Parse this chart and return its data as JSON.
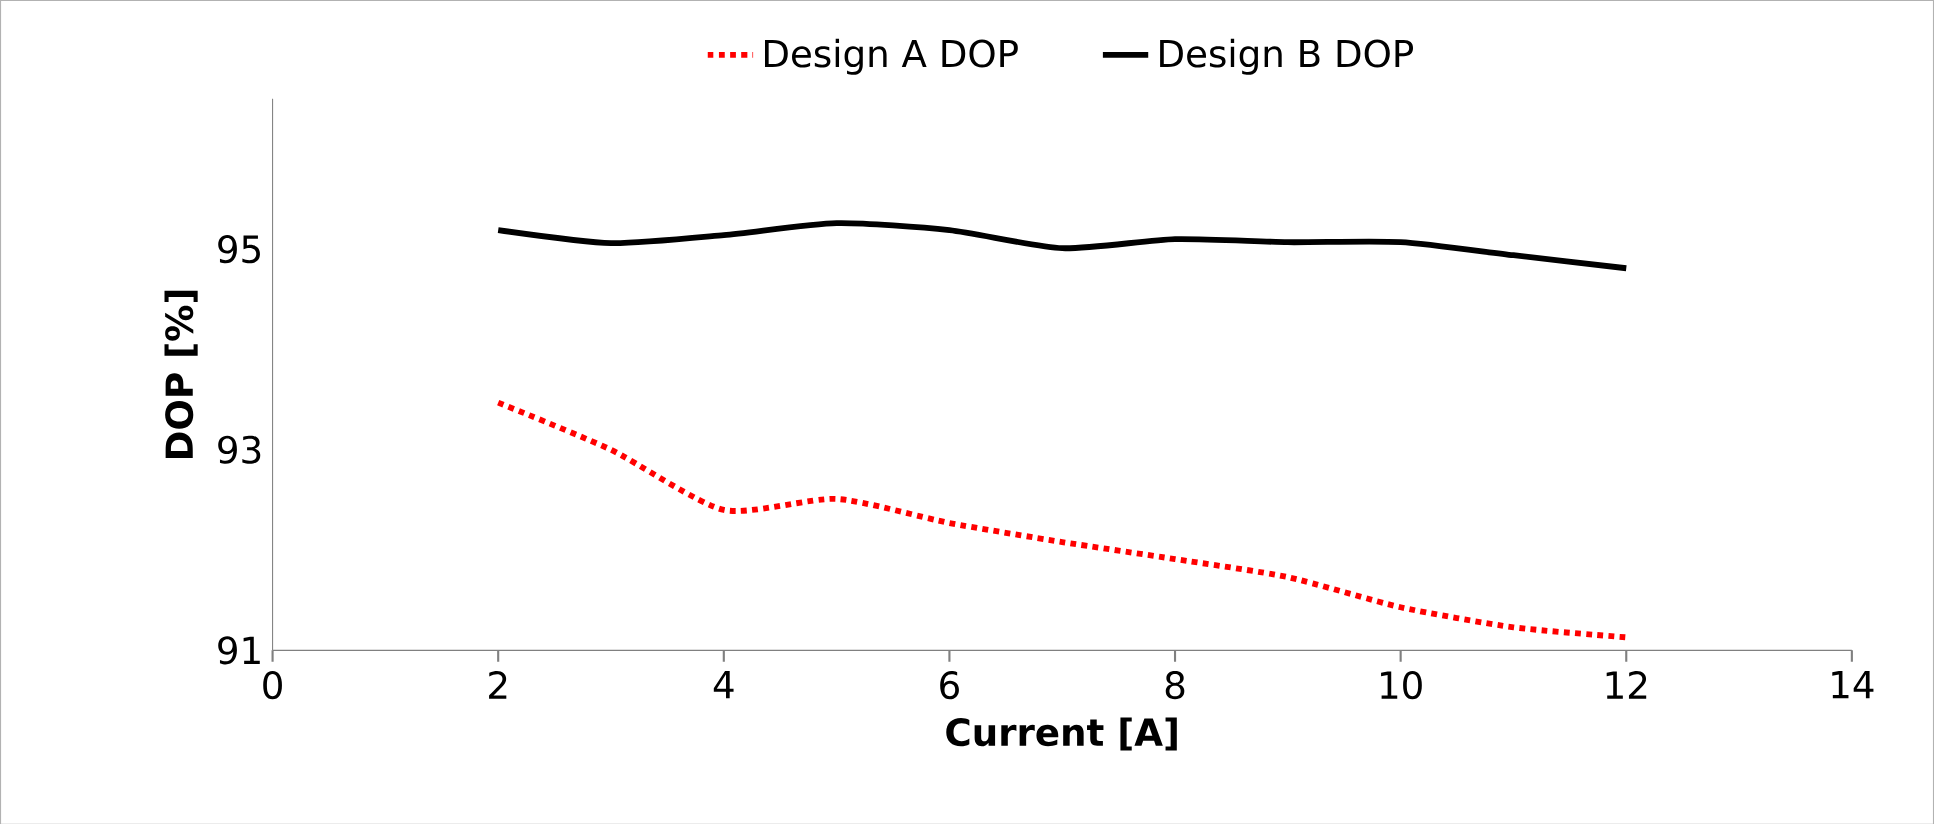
{
  "chart_data": {
    "type": "line",
    "xlabel": "Current [A]",
    "ylabel": "DOP [%]",
    "xlim": [
      0,
      14
    ],
    "xticks": [
      0,
      2,
      4,
      6,
      8,
      10,
      12,
      14
    ],
    "ylim": [
      91,
      96.5
    ],
    "yticks": [
      91,
      93,
      95
    ],
    "legend": "top",
    "grid": false,
    "x": [
      2,
      3,
      4,
      5,
      6,
      7,
      8,
      9,
      10,
      11,
      12
    ],
    "series": [
      {
        "name": "Design  A DOP",
        "color": "#ff0000",
        "line_style": "dotted",
        "values": [
          93.47,
          93.0,
          92.4,
          92.51,
          92.27,
          92.08,
          91.91,
          91.73,
          91.43,
          91.23,
          91.13
        ]
      },
      {
        "name": "Design B DOP",
        "color": "#000000",
        "line_style": "solid",
        "values": [
          95.19,
          95.06,
          95.14,
          95.26,
          95.19,
          95.01,
          95.1,
          95.07,
          95.07,
          94.94,
          94.81
        ]
      }
    ]
  }
}
